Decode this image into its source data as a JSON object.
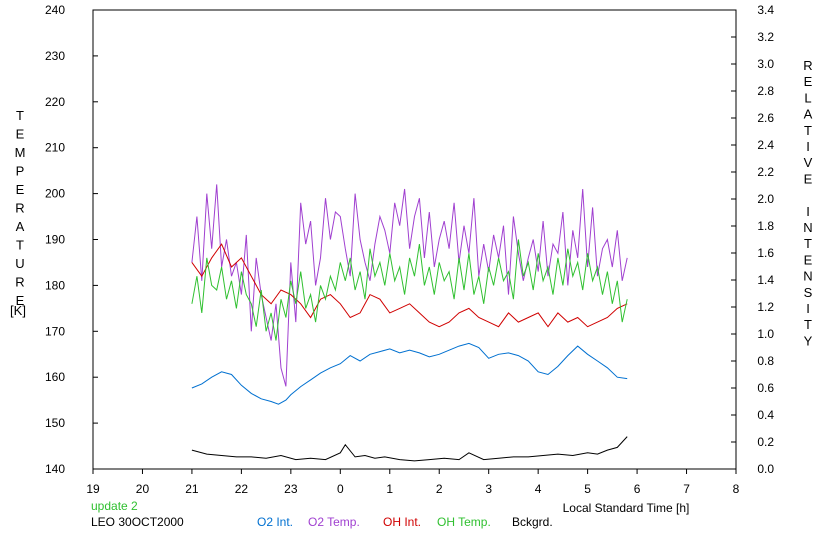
{
  "chart_data": {
    "type": "line",
    "xlabel": "Local Standard Time [h]",
    "ylabel_left": "TEMPERATURE",
    "ylabel_left_unit": "[K]",
    "ylabel_right": "RELATIVE INTENSITY",
    "x_ticks": [
      "19",
      "20",
      "21",
      "22",
      "23",
      "0",
      "1",
      "2",
      "3",
      "4",
      "5",
      "6",
      "7",
      "8"
    ],
    "xlim": [
      19,
      32
    ],
    "ylim_left": [
      140,
      240
    ],
    "y_ticks_left": [
      "140",
      "150",
      "160",
      "170",
      "180",
      "190",
      "200",
      "210",
      "220",
      "230",
      "240"
    ],
    "ylim_right": [
      0.0,
      3.4
    ],
    "y_ticks_right": [
      "0.0",
      "0.2",
      "0.4",
      "0.6",
      "0.8",
      "1.0",
      "1.2",
      "1.4",
      "1.6",
      "1.8",
      "2.0",
      "2.2",
      "2.4",
      "2.6",
      "2.8",
      "3.0",
      "3.2",
      "3.4"
    ],
    "status_text": "update 2",
    "station_text": "LEO 30OCT2000",
    "grid": false,
    "legend_placement": "bottom",
    "series": [
      {
        "name": "O2 Int.",
        "color": "#0070d0",
        "axis": "right",
        "x": [
          21.0,
          21.2,
          21.4,
          21.6,
          21.8,
          22.0,
          22.2,
          22.4,
          22.6,
          22.75,
          22.9,
          23.0,
          23.2,
          23.4,
          23.6,
          23.8,
          24.0,
          24.2,
          24.4,
          24.6,
          24.8,
          25.0,
          25.2,
          25.4,
          25.6,
          25.8,
          26.0,
          26.2,
          26.4,
          26.6,
          26.8,
          27.0,
          27.2,
          27.4,
          27.6,
          27.8,
          28.0,
          28.2,
          28.4,
          28.6,
          28.8,
          29.0,
          29.2,
          29.4,
          29.6,
          29.8
        ],
        "y": [
          0.6,
          0.63,
          0.68,
          0.72,
          0.7,
          0.62,
          0.56,
          0.52,
          0.5,
          0.48,
          0.51,
          0.55,
          0.61,
          0.66,
          0.71,
          0.75,
          0.78,
          0.84,
          0.8,
          0.85,
          0.87,
          0.89,
          0.86,
          0.88,
          0.86,
          0.83,
          0.85,
          0.88,
          0.91,
          0.93,
          0.9,
          0.82,
          0.85,
          0.86,
          0.84,
          0.8,
          0.72,
          0.7,
          0.76,
          0.84,
          0.91,
          0.85,
          0.8,
          0.75,
          0.68,
          0.67
        ]
      },
      {
        "name": "O2 Temp.",
        "color": "#a040d0",
        "axis": "left",
        "x": [
          21.0,
          21.1,
          21.2,
          21.3,
          21.4,
          21.5,
          21.6,
          21.7,
          21.8,
          21.9,
          22.0,
          22.1,
          22.2,
          22.3,
          22.4,
          22.5,
          22.6,
          22.7,
          22.8,
          22.9,
          23.0,
          23.1,
          23.2,
          23.3,
          23.4,
          23.5,
          23.6,
          23.7,
          23.8,
          23.9,
          24.0,
          24.1,
          24.2,
          24.3,
          24.4,
          24.5,
          24.6,
          24.7,
          24.8,
          24.9,
          25.0,
          25.1,
          25.2,
          25.3,
          25.4,
          25.5,
          25.6,
          25.7,
          25.8,
          25.9,
          26.0,
          26.1,
          26.2,
          26.3,
          26.4,
          26.5,
          26.6,
          26.7,
          26.8,
          26.9,
          27.0,
          27.1,
          27.2,
          27.3,
          27.4,
          27.5,
          27.6,
          27.7,
          27.8,
          27.9,
          28.0,
          28.1,
          28.2,
          28.3,
          28.4,
          28.5,
          28.6,
          28.7,
          28.8,
          28.9,
          29.0,
          29.1,
          29.2,
          29.3,
          29.4,
          29.5,
          29.6,
          29.7,
          29.8
        ],
        "y": [
          185,
          195,
          181,
          200,
          188,
          202,
          184,
          190,
          182,
          185,
          178,
          191,
          170,
          186,
          178,
          173,
          168,
          176,
          162,
          158,
          185,
          172,
          198,
          189,
          194,
          180,
          186,
          199,
          190,
          196,
          195,
          188,
          182,
          200,
          190,
          185,
          181,
          189,
          195,
          192,
          187,
          198,
          193,
          201,
          188,
          195,
          199,
          186,
          196,
          184,
          190,
          194,
          188,
          198,
          185,
          193,
          187,
          199,
          182,
          189,
          183,
          191,
          186,
          193,
          178,
          195,
          187,
          181,
          186,
          190,
          183,
          194,
          182,
          189,
          187,
          196,
          180,
          192,
          186,
          201,
          184,
          197,
          182,
          188,
          190,
          184,
          192,
          181,
          186
        ]
      },
      {
        "name": "OH Int.",
        "color": "#d00000",
        "axis": "left",
        "x": [
          21.0,
          21.2,
          21.4,
          21.6,
          21.8,
          22.0,
          22.2,
          22.4,
          22.6,
          22.8,
          23.0,
          23.2,
          23.4,
          23.6,
          23.8,
          24.0,
          24.2,
          24.4,
          24.6,
          24.8,
          25.0,
          25.2,
          25.4,
          25.6,
          25.8,
          26.0,
          26.2,
          26.4,
          26.6,
          26.8,
          27.0,
          27.2,
          27.4,
          27.6,
          27.8,
          28.0,
          28.2,
          28.4,
          28.6,
          28.8,
          29.0,
          29.2,
          29.4,
          29.6,
          29.8
        ],
        "y": [
          185,
          182,
          186,
          189,
          184,
          186,
          182,
          178,
          176,
          179,
          178,
          176,
          173,
          177,
          178,
          176,
          173,
          174,
          178,
          177,
          174,
          175,
          176,
          174,
          172,
          171,
          172,
          174,
          175,
          173,
          172,
          171,
          174,
          172,
          173,
          174,
          171,
          174,
          172,
          173,
          171,
          172,
          173,
          175,
          176
        ]
      },
      {
        "name": "OH Temp.",
        "color": "#30c030",
        "axis": "left",
        "x": [
          21.0,
          21.1,
          21.2,
          21.3,
          21.4,
          21.5,
          21.6,
          21.7,
          21.8,
          21.9,
          22.0,
          22.1,
          22.2,
          22.3,
          22.4,
          22.5,
          22.6,
          22.7,
          22.8,
          22.9,
          23.0,
          23.1,
          23.2,
          23.3,
          23.4,
          23.5,
          23.6,
          23.7,
          23.8,
          23.9,
          24.0,
          24.1,
          24.2,
          24.3,
          24.4,
          24.5,
          24.6,
          24.7,
          24.8,
          24.9,
          25.0,
          25.1,
          25.2,
          25.3,
          25.4,
          25.5,
          25.6,
          25.7,
          25.8,
          25.9,
          26.0,
          26.1,
          26.2,
          26.3,
          26.4,
          26.5,
          26.6,
          26.7,
          26.8,
          26.9,
          27.0,
          27.1,
          27.2,
          27.3,
          27.4,
          27.5,
          27.6,
          27.7,
          27.8,
          27.9,
          28.0,
          28.1,
          28.2,
          28.3,
          28.4,
          28.5,
          28.6,
          28.7,
          28.8,
          28.9,
          29.0,
          29.1,
          29.2,
          29.3,
          29.4,
          29.5,
          29.6,
          29.7,
          29.8
        ],
        "y": [
          176,
          182,
          174,
          186,
          180,
          179,
          184,
          177,
          181,
          175,
          183,
          178,
          176,
          171,
          179,
          170,
          174,
          168,
          177,
          173,
          181,
          176,
          183,
          175,
          178,
          172,
          180,
          177,
          182,
          179,
          185,
          181,
          186,
          179,
          183,
          177,
          188,
          182,
          185,
          180,
          187,
          181,
          184,
          178,
          186,
          182,
          189,
          180,
          184,
          178,
          185,
          181,
          183,
          177,
          186,
          179,
          187,
          178,
          182,
          176,
          184,
          180,
          186,
          181,
          183,
          177,
          190,
          182,
          185,
          179,
          187,
          181,
          184,
          178,
          186,
          180,
          188,
          182,
          185,
          179,
          187,
          181,
          184,
          178,
          183,
          176,
          181,
          172,
          177
        ]
      },
      {
        "name": "Bckgrd.",
        "color": "#000000",
        "axis": "right",
        "x": [
          21.0,
          21.3,
          21.6,
          21.9,
          22.2,
          22.5,
          22.8,
          23.1,
          23.4,
          23.7,
          24.0,
          24.1,
          24.3,
          24.5,
          24.7,
          24.9,
          25.2,
          25.5,
          25.8,
          26.1,
          26.4,
          26.6,
          26.9,
          27.2,
          27.5,
          27.8,
          28.1,
          28.4,
          28.7,
          29.0,
          29.2,
          29.4,
          29.6,
          29.8
        ],
        "y": [
          0.14,
          0.11,
          0.1,
          0.09,
          0.09,
          0.08,
          0.1,
          0.07,
          0.08,
          0.07,
          0.12,
          0.18,
          0.09,
          0.1,
          0.08,
          0.09,
          0.07,
          0.06,
          0.07,
          0.08,
          0.07,
          0.12,
          0.07,
          0.08,
          0.09,
          0.09,
          0.1,
          0.11,
          0.1,
          0.12,
          0.11,
          0.14,
          0.16,
          0.24
        ]
      }
    ]
  }
}
